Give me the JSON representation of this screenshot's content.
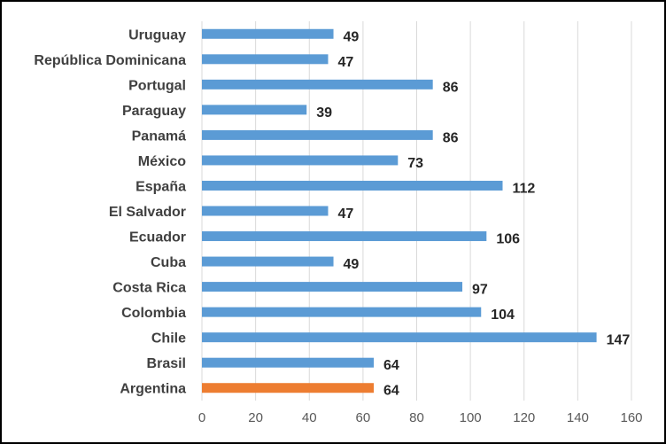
{
  "chart_data": {
    "type": "bar",
    "orientation": "horizontal",
    "title": "",
    "xlabel": "",
    "ylabel": "",
    "categories": [
      "Uruguay",
      "República Dominicana",
      "Portugal",
      "Paraguay",
      "Panamá",
      "México",
      "España",
      "El Salvador",
      "Ecuador",
      "Cuba",
      "Costa Rica",
      "Colombia",
      "Chile",
      "Brasil",
      "Argentina"
    ],
    "values": [
      49,
      47,
      86,
      39,
      86,
      73,
      112,
      47,
      106,
      49,
      97,
      104,
      147,
      64,
      64
    ],
    "value_labels": [
      "49",
      "47",
      "86",
      "39",
      "86",
      "73",
      "112",
      "47",
      "106",
      "49",
      "97",
      "104",
      "147",
      "64",
      "64"
    ],
    "highlighted_category": "Argentina",
    "xlim": [
      0,
      160
    ],
    "xticks": [
      0,
      20,
      40,
      60,
      80,
      100,
      120,
      140,
      160
    ],
    "xtick_labels": [
      "0",
      "20",
      "40",
      "60",
      "80",
      "100",
      "120",
      "140",
      "160"
    ],
    "grid": true,
    "legend": "none",
    "colors": {
      "bar": "#5b9bd5",
      "highlight": "#ed7d31",
      "grid": "#d9d9d9",
      "border": "#000000"
    }
  }
}
